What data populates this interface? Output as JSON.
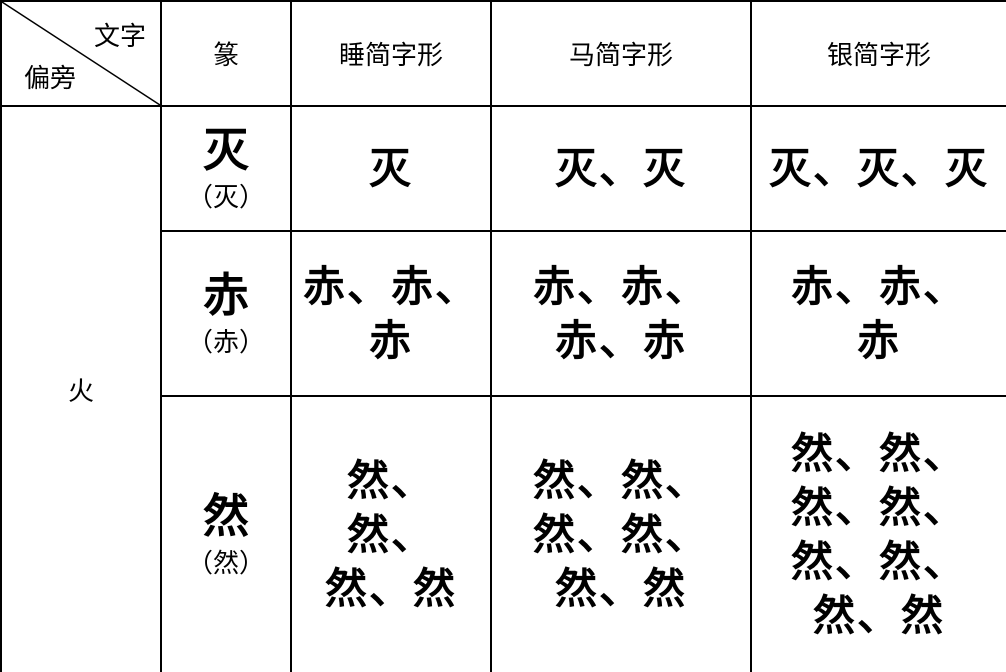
{
  "header": {
    "corner_top": "文字",
    "corner_bottom": "偏旁",
    "columns": [
      "篆",
      "睡简字形",
      "马简字形",
      "银简字形"
    ]
  },
  "radical": "火",
  "rows": [
    {
      "seal_glyph": "灭",
      "seal_label": "（灭）",
      "shui": [
        "灭"
      ],
      "ma": [
        "灭、灭"
      ],
      "yin": [
        "灭、灭、灭"
      ]
    },
    {
      "seal_glyph": "赤",
      "seal_label": "（赤）",
      "shui": [
        "赤、赤、",
        "赤"
      ],
      "ma": [
        "赤、赤、",
        "赤、赤"
      ],
      "yin": [
        "赤、赤、",
        "赤"
      ]
    },
    {
      "seal_glyph": "然",
      "seal_label": "（然）",
      "shui": [
        "然、",
        "然、",
        "然、然"
      ],
      "ma": [
        "然、然、",
        "然、然、",
        "然、然"
      ],
      "yin": [
        "然、然、",
        "然、然、",
        "然、然、",
        "然、然"
      ]
    }
  ]
}
